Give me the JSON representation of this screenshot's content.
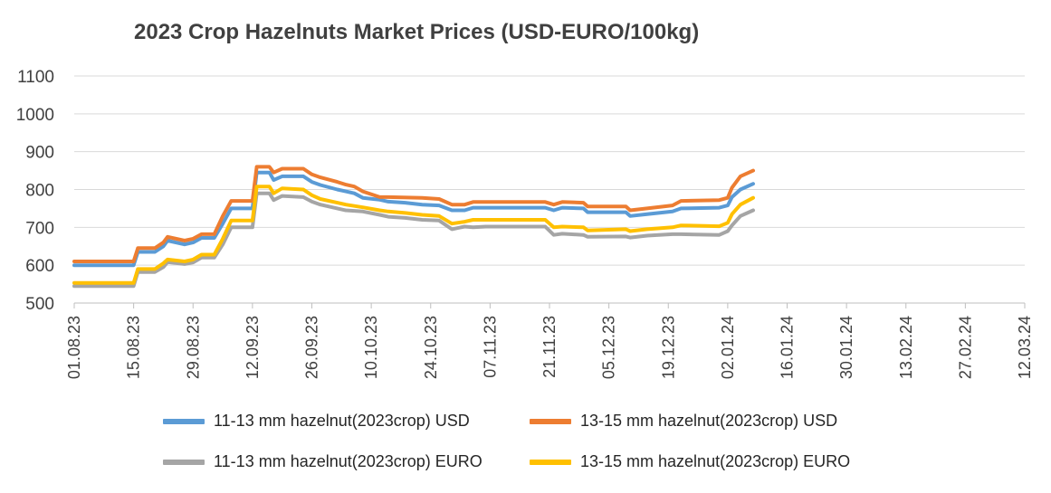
{
  "chart_data": {
    "type": "line",
    "title": "2023 Crop Hazelnuts Market Prices (USD-EURO/100kg)",
    "xlabel": "",
    "ylabel": "",
    "ylim": [
      500,
      1100
    ],
    "yticks": [
      "500",
      "600",
      "700",
      "800",
      "900",
      "1000",
      "1100"
    ],
    "x_range": [
      "2023-08-01",
      "2024-03-12"
    ],
    "xticks": [
      "01.08.23",
      "15.08.23",
      "29.08.23",
      "12.09.23",
      "26.09.23",
      "10.10.23",
      "24.10.23",
      "07.11.23",
      "21.11.23",
      "05.12.23",
      "19.12.23",
      "02.01.24",
      "16.01.24",
      "30.01.24",
      "13.02.24",
      "27.02.24",
      "12.03.24"
    ],
    "grid": true,
    "legend_position": "bottom",
    "series": [
      {
        "name": "11-13 mm hazelnut(2023crop) USD",
        "color": "#5B9BD5",
        "points": [
          [
            "2023-08-01",
            600
          ],
          [
            "2023-08-15",
            600
          ],
          [
            "2023-08-16",
            635
          ],
          [
            "2023-08-20",
            635
          ],
          [
            "2023-08-22",
            650
          ],
          [
            "2023-08-23",
            665
          ],
          [
            "2023-08-27",
            655
          ],
          [
            "2023-08-29",
            660
          ],
          [
            "2023-08-31",
            672
          ],
          [
            "2023-09-03",
            672
          ],
          [
            "2023-09-05",
            710
          ],
          [
            "2023-09-07",
            750
          ],
          [
            "2023-09-12",
            750
          ],
          [
            "2023-09-13",
            845
          ],
          [
            "2023-09-16",
            845
          ],
          [
            "2023-09-17",
            825
          ],
          [
            "2023-09-19",
            835
          ],
          [
            "2023-09-24",
            835
          ],
          [
            "2023-09-26",
            820
          ],
          [
            "2023-09-28",
            812
          ],
          [
            "2023-10-02",
            800
          ],
          [
            "2023-10-04",
            795
          ],
          [
            "2023-10-06",
            790
          ],
          [
            "2023-10-08",
            778
          ],
          [
            "2023-10-12",
            773
          ],
          [
            "2023-10-14",
            768
          ],
          [
            "2023-10-18",
            765
          ],
          [
            "2023-10-22",
            760
          ],
          [
            "2023-10-26",
            758
          ],
          [
            "2023-10-29",
            745
          ],
          [
            "2023-11-01",
            745
          ],
          [
            "2023-11-03",
            752
          ],
          [
            "2023-11-06",
            752
          ],
          [
            "2023-11-20",
            752
          ],
          [
            "2023-11-22",
            745
          ],
          [
            "2023-11-24",
            752
          ],
          [
            "2023-11-29",
            750
          ],
          [
            "2023-11-30",
            740
          ],
          [
            "2023-12-09",
            740
          ],
          [
            "2023-12-10",
            730
          ],
          [
            "2023-12-14",
            735
          ],
          [
            "2023-12-20",
            742
          ],
          [
            "2023-12-22",
            750
          ],
          [
            "2023-12-31",
            752
          ],
          [
            "2024-01-02",
            758
          ],
          [
            "2024-01-03",
            780
          ],
          [
            "2024-01-05",
            800
          ],
          [
            "2024-01-08",
            815
          ]
        ]
      },
      {
        "name": "13-15 mm hazelnut(2023crop) USD",
        "color": "#ED7D31",
        "points": [
          [
            "2023-08-01",
            610
          ],
          [
            "2023-08-15",
            610
          ],
          [
            "2023-08-16",
            645
          ],
          [
            "2023-08-20",
            645
          ],
          [
            "2023-08-22",
            660
          ],
          [
            "2023-08-23",
            675
          ],
          [
            "2023-08-27",
            665
          ],
          [
            "2023-08-29",
            670
          ],
          [
            "2023-08-31",
            682
          ],
          [
            "2023-09-03",
            682
          ],
          [
            "2023-09-05",
            730
          ],
          [
            "2023-09-07",
            770
          ],
          [
            "2023-09-12",
            770
          ],
          [
            "2023-09-13",
            860
          ],
          [
            "2023-09-16",
            860
          ],
          [
            "2023-09-17",
            845
          ],
          [
            "2023-09-19",
            855
          ],
          [
            "2023-09-24",
            855
          ],
          [
            "2023-09-26",
            840
          ],
          [
            "2023-09-28",
            832
          ],
          [
            "2023-10-02",
            820
          ],
          [
            "2023-10-04",
            813
          ],
          [
            "2023-10-06",
            808
          ],
          [
            "2023-10-08",
            795
          ],
          [
            "2023-10-12",
            780
          ],
          [
            "2023-10-14",
            780
          ],
          [
            "2023-10-22",
            778
          ],
          [
            "2023-10-26",
            775
          ],
          [
            "2023-10-29",
            760
          ],
          [
            "2023-11-01",
            760
          ],
          [
            "2023-11-03",
            767
          ],
          [
            "2023-11-06",
            767
          ],
          [
            "2023-11-20",
            767
          ],
          [
            "2023-11-22",
            760
          ],
          [
            "2023-11-24",
            767
          ],
          [
            "2023-11-29",
            765
          ],
          [
            "2023-11-30",
            755
          ],
          [
            "2023-12-09",
            755
          ],
          [
            "2023-12-10",
            745
          ],
          [
            "2023-12-14",
            750
          ],
          [
            "2023-12-20",
            758
          ],
          [
            "2023-12-22",
            770
          ],
          [
            "2023-12-31",
            772
          ],
          [
            "2024-01-02",
            778
          ],
          [
            "2024-01-03",
            805
          ],
          [
            "2024-01-05",
            835
          ],
          [
            "2024-01-08",
            850
          ]
        ]
      },
      {
        "name": "11-13 mm hazelnut(2023crop) EURO",
        "color": "#A5A5A5",
        "points": [
          [
            "2023-08-01",
            545
          ],
          [
            "2023-08-15",
            545
          ],
          [
            "2023-08-16",
            582
          ],
          [
            "2023-08-20",
            582
          ],
          [
            "2023-08-22",
            595
          ],
          [
            "2023-08-23",
            608
          ],
          [
            "2023-08-27",
            603
          ],
          [
            "2023-08-29",
            607
          ],
          [
            "2023-08-31",
            620
          ],
          [
            "2023-09-03",
            620
          ],
          [
            "2023-09-05",
            655
          ],
          [
            "2023-09-07",
            700
          ],
          [
            "2023-09-12",
            700
          ],
          [
            "2023-09-13",
            790
          ],
          [
            "2023-09-16",
            790
          ],
          [
            "2023-09-17",
            772
          ],
          [
            "2023-09-19",
            783
          ],
          [
            "2023-09-24",
            780
          ],
          [
            "2023-09-26",
            768
          ],
          [
            "2023-09-28",
            760
          ],
          [
            "2023-10-02",
            750
          ],
          [
            "2023-10-04",
            745
          ],
          [
            "2023-10-08",
            742
          ],
          [
            "2023-10-12",
            733
          ],
          [
            "2023-10-14",
            728
          ],
          [
            "2023-10-18",
            725
          ],
          [
            "2023-10-22",
            720
          ],
          [
            "2023-10-26",
            718
          ],
          [
            "2023-10-29",
            695
          ],
          [
            "2023-11-01",
            702
          ],
          [
            "2023-11-03",
            700
          ],
          [
            "2023-11-06",
            702
          ],
          [
            "2023-11-20",
            702
          ],
          [
            "2023-11-22",
            680
          ],
          [
            "2023-11-24",
            683
          ],
          [
            "2023-11-29",
            680
          ],
          [
            "2023-11-30",
            675
          ],
          [
            "2023-12-09",
            676
          ],
          [
            "2023-12-10",
            673
          ],
          [
            "2023-12-14",
            678
          ],
          [
            "2023-12-20",
            682
          ],
          [
            "2023-12-22",
            682
          ],
          [
            "2023-12-31",
            680
          ],
          [
            "2024-01-02",
            690
          ],
          [
            "2024-01-03",
            705
          ],
          [
            "2024-01-05",
            730
          ],
          [
            "2024-01-08",
            745
          ]
        ]
      },
      {
        "name": "13-15 mm hazelnut(2023crop) EURO",
        "color": "#FFC000",
        "points": [
          [
            "2023-08-01",
            553
          ],
          [
            "2023-08-15",
            553
          ],
          [
            "2023-08-16",
            590
          ],
          [
            "2023-08-20",
            590
          ],
          [
            "2023-08-22",
            605
          ],
          [
            "2023-08-23",
            615
          ],
          [
            "2023-08-27",
            610
          ],
          [
            "2023-08-29",
            615
          ],
          [
            "2023-08-31",
            628
          ],
          [
            "2023-09-03",
            628
          ],
          [
            "2023-09-05",
            670
          ],
          [
            "2023-09-07",
            718
          ],
          [
            "2023-09-12",
            718
          ],
          [
            "2023-09-13",
            808
          ],
          [
            "2023-09-16",
            808
          ],
          [
            "2023-09-17",
            790
          ],
          [
            "2023-09-19",
            803
          ],
          [
            "2023-09-24",
            800
          ],
          [
            "2023-09-26",
            785
          ],
          [
            "2023-09-28",
            775
          ],
          [
            "2023-10-02",
            765
          ],
          [
            "2023-10-04",
            760
          ],
          [
            "2023-10-08",
            753
          ],
          [
            "2023-10-12",
            745
          ],
          [
            "2023-10-14",
            742
          ],
          [
            "2023-10-18",
            738
          ],
          [
            "2023-10-22",
            733
          ],
          [
            "2023-10-26",
            730
          ],
          [
            "2023-10-29",
            710
          ],
          [
            "2023-11-01",
            715
          ],
          [
            "2023-11-03",
            720
          ],
          [
            "2023-11-06",
            720
          ],
          [
            "2023-11-20",
            720
          ],
          [
            "2023-11-22",
            700
          ],
          [
            "2023-11-24",
            702
          ],
          [
            "2023-11-29",
            700
          ],
          [
            "2023-11-30",
            692
          ],
          [
            "2023-12-09",
            695
          ],
          [
            "2023-12-10",
            690
          ],
          [
            "2023-12-14",
            695
          ],
          [
            "2023-12-20",
            700
          ],
          [
            "2023-12-22",
            705
          ],
          [
            "2023-12-31",
            703
          ],
          [
            "2024-01-02",
            712
          ],
          [
            "2024-01-03",
            735
          ],
          [
            "2024-01-05",
            760
          ],
          [
            "2024-01-08",
            778
          ]
        ]
      }
    ]
  }
}
